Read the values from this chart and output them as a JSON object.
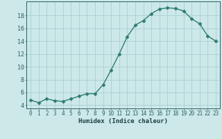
{
  "x": [
    0,
    1,
    2,
    3,
    4,
    5,
    6,
    7,
    8,
    9,
    10,
    11,
    12,
    13,
    14,
    15,
    16,
    17,
    18,
    19,
    20,
    21,
    22,
    23
  ],
  "y": [
    4.8,
    4.4,
    5.0,
    4.7,
    4.6,
    5.0,
    5.4,
    5.8,
    5.8,
    7.2,
    9.5,
    12.0,
    14.7,
    16.5,
    17.2,
    18.3,
    19.0,
    19.2,
    19.1,
    18.7,
    17.5,
    16.7,
    14.8,
    14.0
  ],
  "xlabel": "Humidex (Indice chaleur)",
  "line_color": "#2e7d6e",
  "marker": "D",
  "bg_color": "#cce8e8",
  "grid_color": "#aad0d0",
  "tick_color": "#2e6060",
  "text_color": "#1a4040",
  "ylim": [
    3.5,
    20.2
  ],
  "yticks": [
    4,
    6,
    8,
    10,
    12,
    14,
    16,
    18
  ],
  "xticks": [
    0,
    1,
    2,
    3,
    4,
    5,
    6,
    7,
    8,
    9,
    10,
    11,
    12,
    13,
    14,
    15,
    16,
    17,
    18,
    19,
    20,
    21,
    22,
    23
  ],
  "marker_size": 2.5,
  "linewidth": 1.0,
  "xlabel_fontsize": 6.5,
  "tick_fontsize": 5.5
}
